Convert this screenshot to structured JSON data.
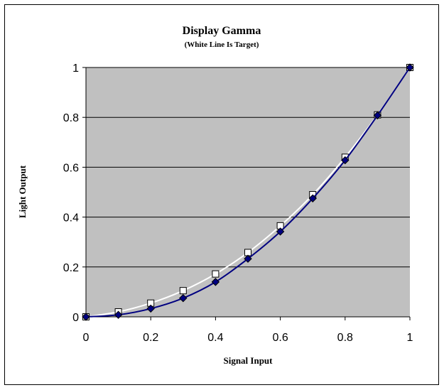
{
  "chart_data": {
    "type": "line",
    "title": "Display Gamma",
    "subtitle": "(White Line Is Target)",
    "xlabel": "Signal Input",
    "ylabel": "Light Output",
    "xlim": [
      0,
      1
    ],
    "ylim": [
      0,
      1
    ],
    "xticks": [
      "0",
      "0.2",
      "0.4",
      "0.6",
      "0.8",
      "1"
    ],
    "yticks": [
      "0",
      "0.2",
      "0.4",
      "0.6",
      "0.8",
      "1"
    ],
    "grid": "horizontal",
    "legend": "none",
    "x": [
      0,
      0.1,
      0.2,
      0.3,
      0.4,
      0.5,
      0.6,
      0.7,
      0.8,
      0.9,
      1
    ],
    "series": [
      {
        "marker": "square",
        "color": "#ffffff",
        "marker_fill": "#ffffff",
        "marker_stroke": "#000000",
        "values": [
          0,
          0.02,
          0.055,
          0.105,
          0.172,
          0.258,
          0.365,
          0.49,
          0.64,
          0.81,
          1
        ]
      },
      {
        "marker": "diamond",
        "color": "#000080",
        "marker_fill": "#000080",
        "marker_stroke": "#000000",
        "values": [
          0,
          0.008,
          0.033,
          0.075,
          0.14,
          0.233,
          0.342,
          0.475,
          0.628,
          0.808,
          1
        ]
      }
    ],
    "plot_background": "#c0c0c0",
    "grid_color": "#000000"
  }
}
